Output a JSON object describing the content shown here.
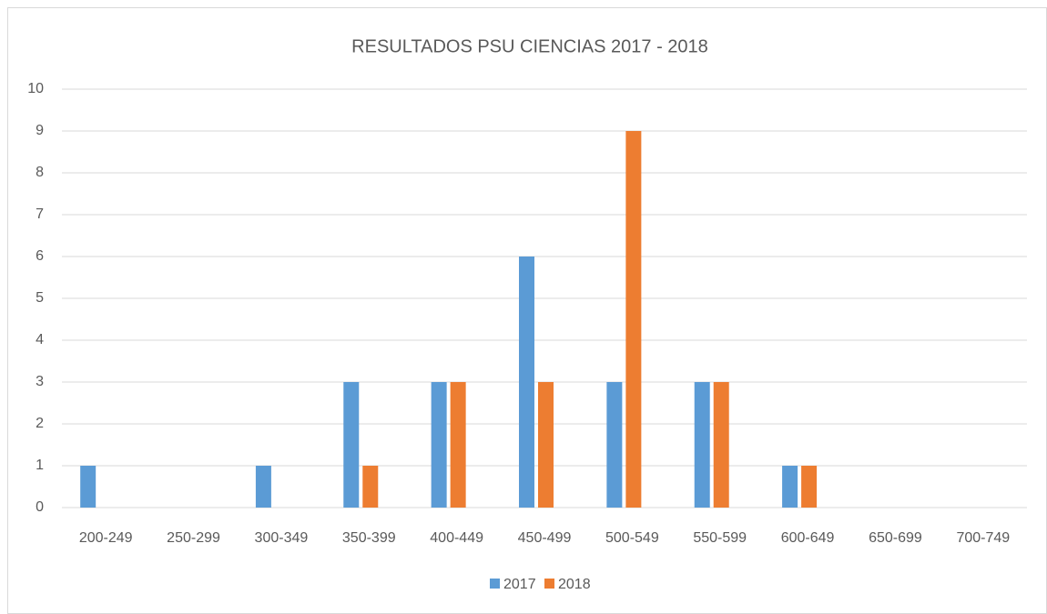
{
  "chart_data": {
    "type": "bar",
    "title": "RESULTADOS PSU CIENCIAS 2017 - 2018",
    "categories": [
      "200-249",
      "250-299",
      "300-349",
      "350-399",
      "400-449",
      "450-499",
      "500-549",
      "550-599",
      "600-649",
      "650-699",
      "700-749"
    ],
    "series": [
      {
        "name": "2017",
        "color": "#5b9bd5",
        "values": [
          1,
          0,
          1,
          3,
          3,
          6,
          3,
          3,
          1,
          0,
          0
        ]
      },
      {
        "name": "2018",
        "color": "#ed7d31",
        "values": [
          0,
          0,
          0,
          1,
          3,
          3,
          9,
          3,
          1,
          0,
          0
        ]
      }
    ],
    "ylim": [
      0,
      10
    ],
    "yticks": [
      0,
      1,
      2,
      3,
      4,
      5,
      6,
      7,
      8,
      9,
      10
    ],
    "grid": true,
    "legend": "bottom"
  }
}
